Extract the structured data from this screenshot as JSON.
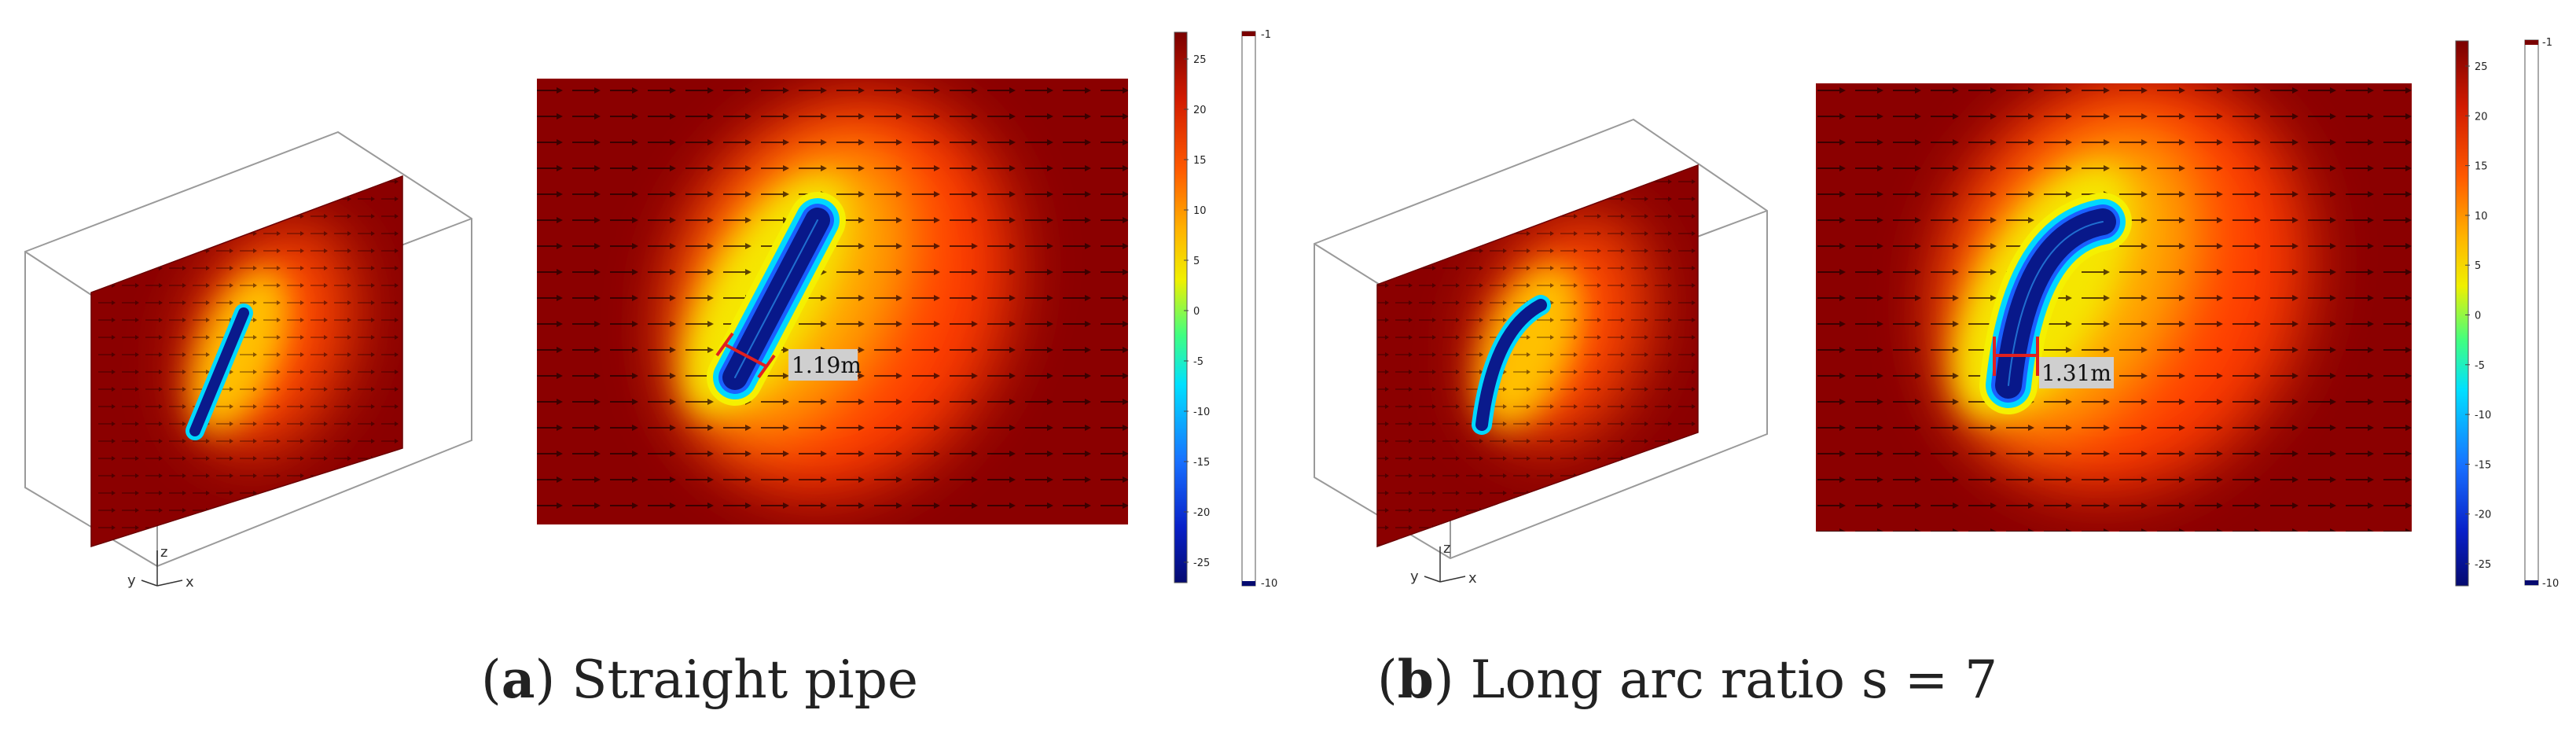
{
  "panels": [
    {
      "letter": "a",
      "caption": "Straight pipe",
      "measurement": "1.19m",
      "axes": {
        "z": "z",
        "y": "y",
        "x": "x"
      },
      "colorbar": {
        "ticks": [
          "25",
          "20",
          "15",
          "10",
          "5",
          "0",
          "-5",
          "-10",
          "-15",
          "-20",
          "-25"
        ]
      },
      "narrow_bar": {
        "top": "-1",
        "bottom": "-10"
      }
    },
    {
      "letter": "b",
      "caption": "Long arc ratio s = 7",
      "measurement": "1.31m",
      "axes": {
        "z": "z",
        "y": "y",
        "x": "x"
      },
      "colorbar": {
        "ticks": [
          "25",
          "20",
          "15",
          "10",
          "5",
          "0",
          "-5",
          "-10",
          "-15",
          "-20",
          "-25"
        ]
      },
      "narrow_bar": {
        "top": "-1",
        "bottom": "-10"
      }
    }
  ],
  "colors": {
    "field": "#8b0000",
    "warm": "#ff3c00",
    "yellow": "#f5e600",
    "cyan": "#00d8ff",
    "deep": "#0a1a8c",
    "measure_line": "#e02020"
  }
}
